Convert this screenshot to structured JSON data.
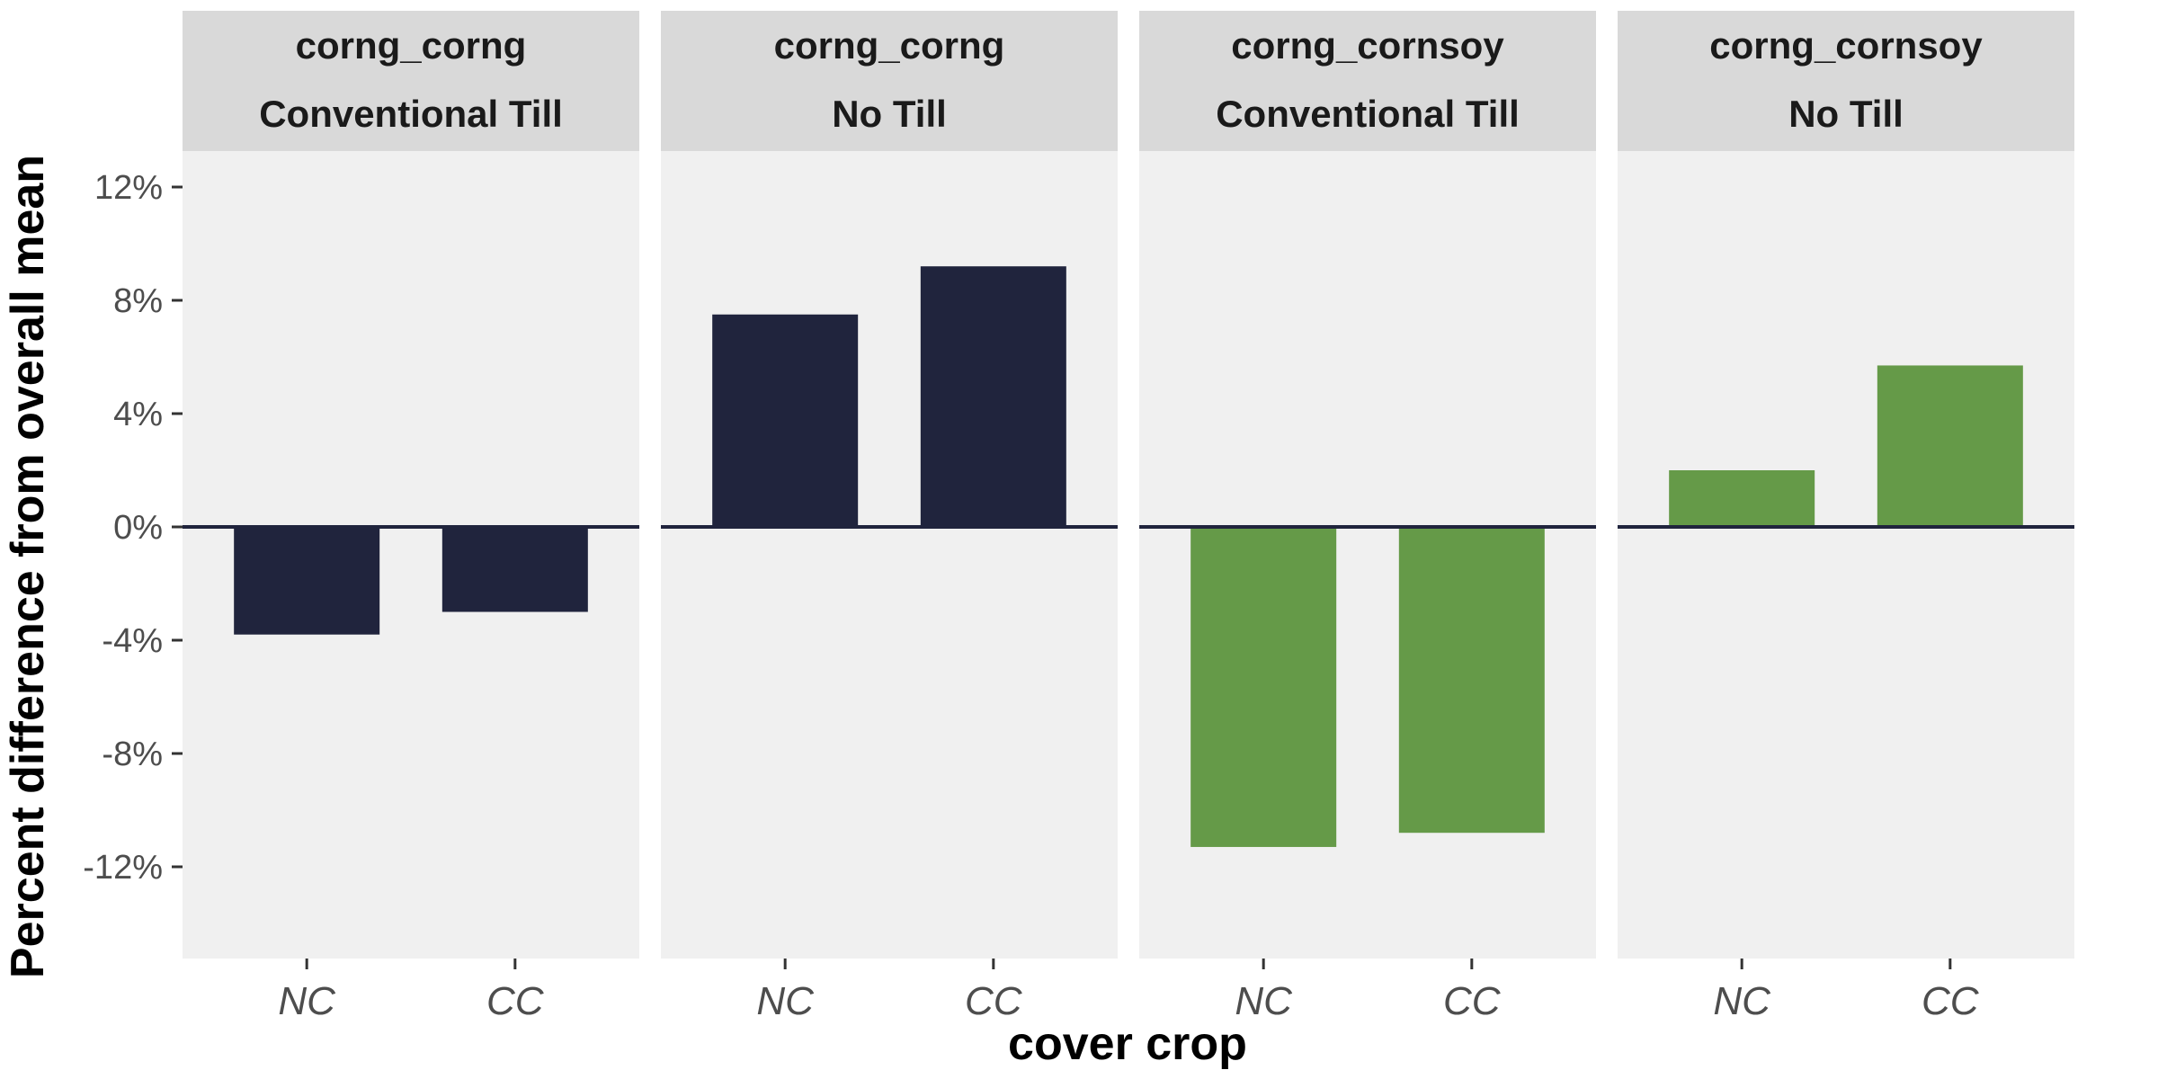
{
  "chart_data": {
    "type": "bar",
    "xlabel": "cover crop",
    "ylabel": "Percent difference from overall mean",
    "ylim": [
      -15.2,
      15.2
    ],
    "y_ticks": [
      12,
      8,
      4,
      0,
      -4,
      -8,
      -12
    ],
    "y_tick_labels": [
      "12%",
      "8%",
      "4%",
      "0%",
      "-4%",
      "-8%",
      "-12%"
    ],
    "categories": [
      "NC",
      "CC"
    ],
    "category_labels": [
      "NC",
      "CC"
    ],
    "grid": false,
    "legend": "none",
    "panels": [
      {
        "strip_top": "corng_corng",
        "strip_bottom": "Conventional Till",
        "color": "#20243d",
        "values": [
          -3.8,
          -3.0
        ]
      },
      {
        "strip_top": "corng_corng",
        "strip_bottom": "No Till",
        "color": "#20243d",
        "values": [
          7.5,
          9.2
        ]
      },
      {
        "strip_top": "corng_cornsoy",
        "strip_bottom": "Conventional Till",
        "color": "#659a48",
        "values": [
          -11.3,
          -10.8
        ]
      },
      {
        "strip_top": "corng_cornsoy",
        "strip_bottom": "No Till",
        "color": "#659a48",
        "values": [
          2.0,
          5.7
        ]
      }
    ],
    "colors": {
      "panel_background": "#f0f0f0",
      "strip_background": "#d9d9d9",
      "zero_line": "#20243d"
    }
  }
}
